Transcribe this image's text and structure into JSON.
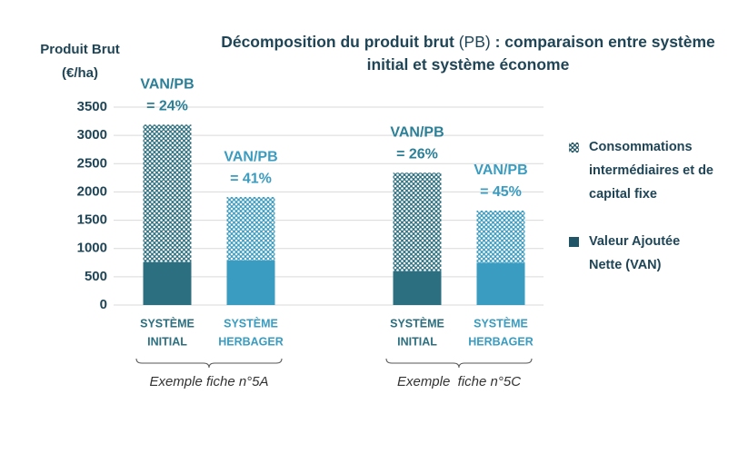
{
  "chart_data": {
    "type": "bar",
    "stacked": true,
    "title": [
      "Décomposition du produit brut",
      "(PB)",
      ": comparaison entre système initial et système économe"
    ],
    "ylabel": [
      "Produit Brut",
      "(€/ha)"
    ],
    "categories": [
      [
        "SYSTÈME",
        "INITIAL"
      ],
      [
        "SYSTÈME",
        "HERBAGER"
      ],
      [
        "SYSTÈME",
        "INITIAL"
      ],
      [
        "SYSTÈME",
        "HERBAGER"
      ]
    ],
    "category_colors": [
      "#2c6f80",
      "#3a9cc0",
      "#2c6f80",
      "#3a9cc0"
    ],
    "groups": [
      "Exemple fiche n°5A",
      "Exemple  fiche n°5C"
    ],
    "series": [
      {
        "name": "Valeur Ajoutée Nette (VAN)",
        "color": "#1f5566",
        "colors": [
          "#2c6f80",
          "#3a9cc0",
          "#2c6f80",
          "#3a9cc0"
        ],
        "values": [
          760,
          790,
          600,
          750
        ]
      },
      {
        "name": "Consommations intermédiaires et de capital fixe",
        "pattern": "dots",
        "color": "#1f5566",
        "colors": [
          "#2c6f80",
          "#3a9cc0",
          "#2c6f80",
          "#3a9cc0"
        ],
        "values": [
          2430,
          1120,
          1740,
          920
        ]
      }
    ],
    "ratio_labels": {
      "name": "VAN/PB",
      "values": [
        24,
        41,
        26,
        45
      ],
      "value_labels": [
        "= 24%",
        "= 41%",
        "= 26%",
        "= 45%"
      ],
      "colors": [
        "#2b7f97",
        "#3a9cc0",
        "#2b7f97",
        "#3a9cc0"
      ]
    },
    "ylim": [
      0,
      3500
    ],
    "yticks": [
      0,
      500,
      1000,
      1500,
      2000,
      2500,
      3000,
      3500
    ],
    "grid": true
  }
}
